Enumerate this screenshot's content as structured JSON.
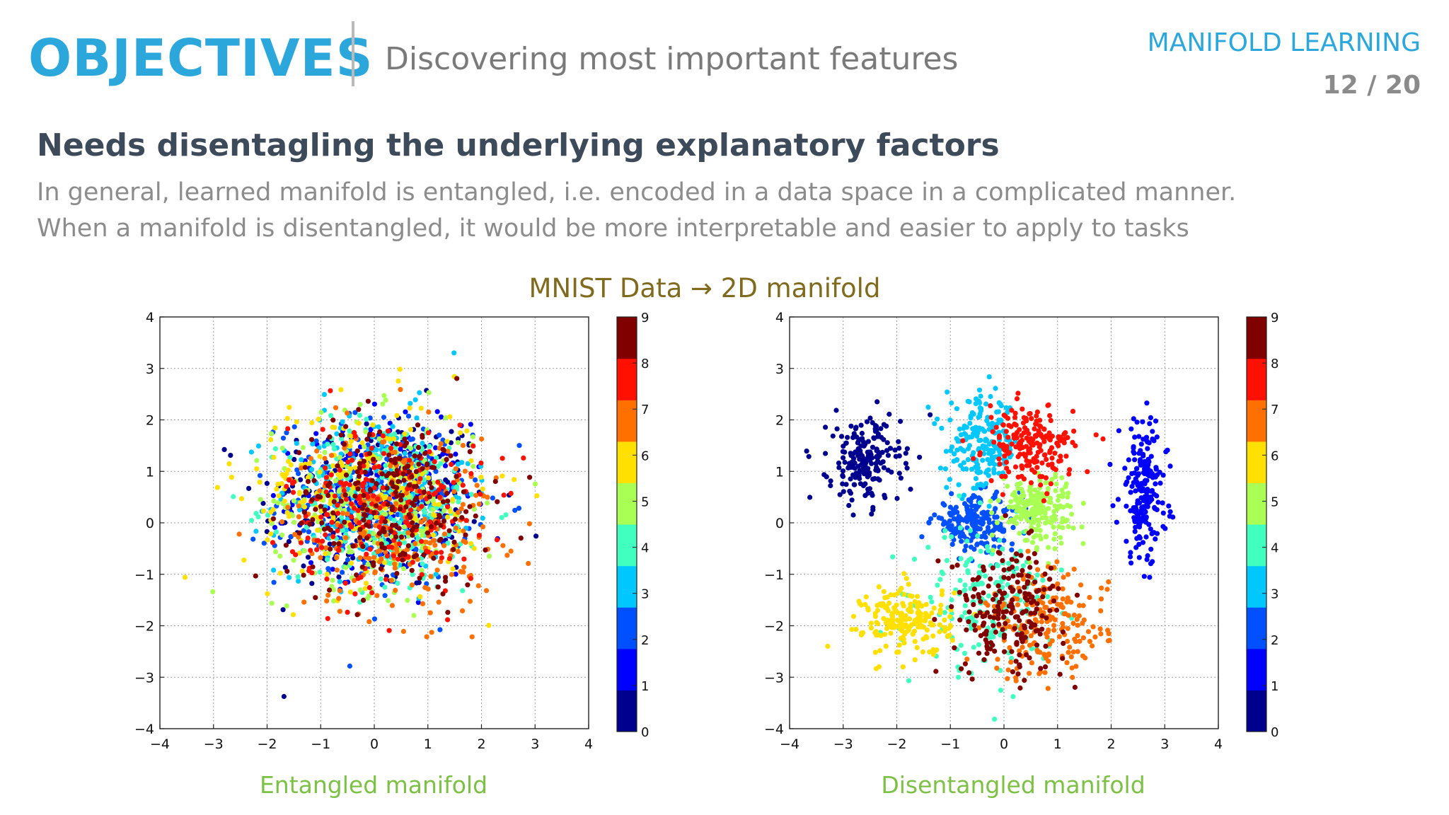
{
  "header": {
    "title": "OBJECTIVES",
    "subtitle": "Discovering most important features",
    "topic": "MANIFOLD LEARNING",
    "page": "12 / 20"
  },
  "content": {
    "heading": "Needs disentagling the underlying explanatory factors",
    "lines": [
      "In general, learned manifold is entangled, i.e. encoded in a data space in a complicated manner.",
      "When a manifold is disentangled, it would be more interpretable and easier to apply to tasks"
    ],
    "figure_title": "MNIST Data → 2D manifold"
  },
  "colors": {
    "title": "#2ba7dc",
    "caption": "#7cc145",
    "figure_title": "#7f6a1e",
    "jet": [
      "#00008f",
      "#0000ff",
      "#0050ff",
      "#00c8ff",
      "#40ffbf",
      "#aaff55",
      "#ffe000",
      "#ff7000",
      "#ff1000",
      "#800000"
    ]
  },
  "chart_data": [
    {
      "type": "scatter",
      "title": "",
      "caption": "Entangled manifold",
      "xlim": [
        -4,
        4
      ],
      "ylim": [
        -4,
        4
      ],
      "xticks": [
        "−4",
        "−3",
        "−2",
        "−1",
        "0",
        "1",
        "2",
        "3",
        "4"
      ],
      "yticks": [
        "−4",
        "−3",
        "−2",
        "−1",
        "0",
        "1",
        "2",
        "3",
        "4"
      ],
      "grid": true,
      "colorbar": {
        "min": 0,
        "max": 9,
        "ticks": [
          "0",
          "1",
          "2",
          "3",
          "4",
          "5",
          "6",
          "7",
          "8",
          "9"
        ],
        "colormap": "jet"
      },
      "series": [
        {
          "label": 0,
          "cx": 0.0,
          "cy": 0.4,
          "sx": 1.45,
          "sy": 1.2
        },
        {
          "label": 1,
          "cx": 0.1,
          "cy": 0.5,
          "sx": 1.05,
          "sy": 0.95
        },
        {
          "label": 2,
          "cx": 0.0,
          "cy": 0.4,
          "sx": 1.2,
          "sy": 1.1
        },
        {
          "label": 3,
          "cx": 0.0,
          "cy": 0.6,
          "sx": 1.2,
          "sy": 1.05
        },
        {
          "label": 4,
          "cx": 0.3,
          "cy": 0.3,
          "sx": 1.25,
          "sy": 1.15
        },
        {
          "label": 5,
          "cx": 0.0,
          "cy": 0.4,
          "sx": 1.25,
          "sy": 1.1
        },
        {
          "label": 6,
          "cx": -0.2,
          "cy": 0.6,
          "sx": 1.5,
          "sy": 1.2
        },
        {
          "label": 7,
          "cx": 0.4,
          "cy": 0.0,
          "sx": 1.3,
          "sy": 1.2
        },
        {
          "label": 8,
          "cx": 0.2,
          "cy": 0.3,
          "sx": 1.2,
          "sy": 1.1
        },
        {
          "label": 9,
          "cx": 0.3,
          "cy": 0.4,
          "sx": 1.25,
          "sy": 1.1
        }
      ]
    },
    {
      "type": "scatter",
      "title": "",
      "caption": "Disentangled manifold",
      "xlim": [
        -4,
        4
      ],
      "ylim": [
        -4,
        4
      ],
      "xticks": [
        "−4",
        "−3",
        "−2",
        "−1",
        "0",
        "1",
        "2",
        "3",
        "4"
      ],
      "yticks": [
        "−4",
        "−3",
        "−2",
        "−1",
        "0",
        "1",
        "2",
        "3",
        "4"
      ],
      "grid": true,
      "colorbar": {
        "min": 0,
        "max": 9,
        "ticks": [
          "0",
          "1",
          "2",
          "3",
          "4",
          "5",
          "6",
          "7",
          "8",
          "9"
        ],
        "colormap": "jet"
      },
      "series": [
        {
          "label": 0,
          "cx": -2.6,
          "cy": 1.2,
          "sx": 0.45,
          "sy": 0.55
        },
        {
          "label": 1,
          "cx": 2.6,
          "cy": 0.6,
          "sx": 0.3,
          "sy": 0.9
        },
        {
          "label": 2,
          "cx": -0.5,
          "cy": 0.0,
          "sx": 0.55,
          "sy": 0.35
        },
        {
          "label": 3,
          "cx": -0.4,
          "cy": 1.5,
          "sx": 0.45,
          "sy": 0.6
        },
        {
          "label": 4,
          "cx": -0.3,
          "cy": -1.5,
          "sx": 0.8,
          "sy": 0.9
        },
        {
          "label": 5,
          "cx": 0.6,
          "cy": 0.3,
          "sx": 0.45,
          "sy": 0.45
        },
        {
          "label": 6,
          "cx": -1.8,
          "cy": -1.9,
          "sx": 0.55,
          "sy": 0.45
        },
        {
          "label": 7,
          "cx": 0.8,
          "cy": -2.0,
          "sx": 0.75,
          "sy": 0.7
        },
        {
          "label": 8,
          "cx": 0.5,
          "cy": 1.5,
          "sx": 0.55,
          "sy": 0.5
        },
        {
          "label": 9,
          "cx": 0.1,
          "cy": -1.7,
          "sx": 0.7,
          "sy": 0.8
        }
      ]
    }
  ]
}
